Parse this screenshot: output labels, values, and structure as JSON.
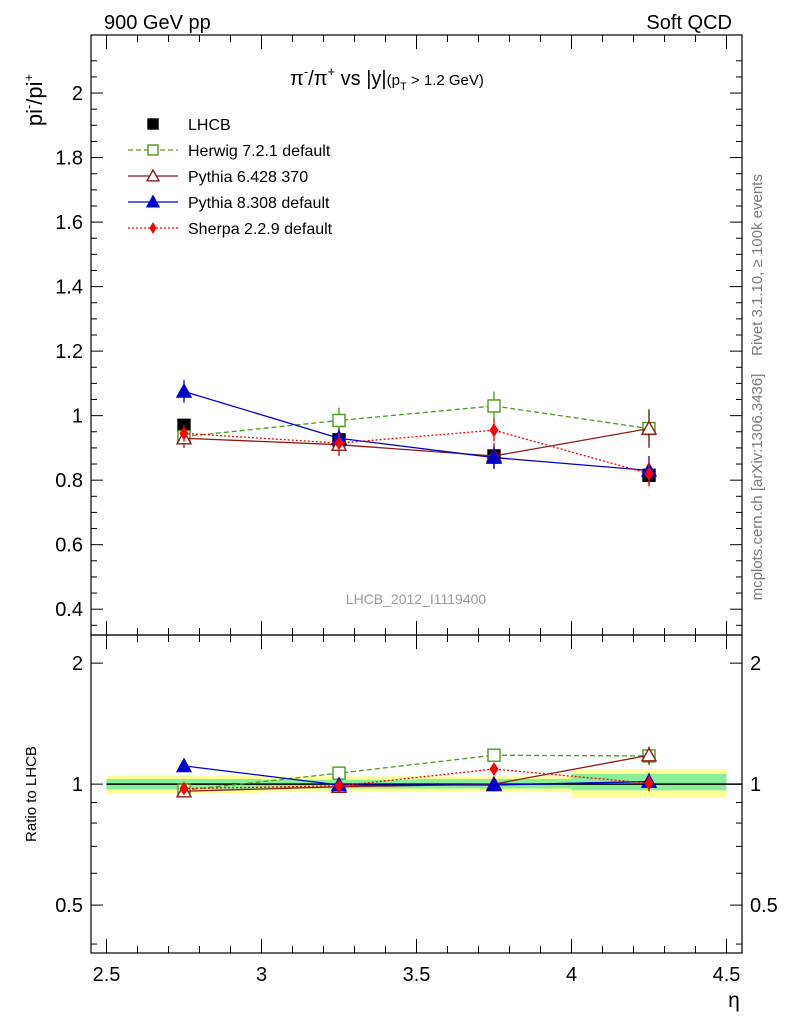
{
  "header": {
    "left": "900 GeV pp",
    "right": "Soft QCD"
  },
  "side": {
    "rivet": "Rivet 3.1.10, ≥ 100k events",
    "mcplots": "mcplots.cern.ch [arXiv:1306.3436]"
  },
  "chart_data": [
    {
      "type": "scatter",
      "panel": "main",
      "title_parts": {
        "pi": "π",
        "minus": "-",
        "slash": "/",
        "plus": "+",
        "vs": " vs |y|",
        "paren_open": "(p",
        "sub_T": "T",
        "cut": " > 1.2 GeV)"
      },
      "ylabel_parts": {
        "base1": "pi",
        "sup1": "-",
        "mid": "/pi",
        "sup2": "+"
      },
      "watermark": "LHCB_2012_I1119400",
      "xlim": [
        2.45,
        4.55
      ],
      "ylim": [
        0.32,
        2.18
      ],
      "yticks": [
        {
          "v": 0.4,
          "label": "0.4"
        },
        {
          "v": 0.6,
          "label": "0.6"
        },
        {
          "v": 0.8,
          "label": "0.8"
        },
        {
          "v": 1.0,
          "label": "1"
        },
        {
          "v": 1.2,
          "label": "1.2"
        },
        {
          "v": 1.4,
          "label": "1.4"
        },
        {
          "v": 1.6,
          "label": "1.6"
        },
        {
          "v": 1.8,
          "label": "1.8"
        },
        {
          "v": 2.0,
          "label": "2"
        }
      ],
      "legend_position": "top-left",
      "x": [
        2.75,
        3.25,
        3.75,
        4.25
      ],
      "series": [
        {
          "name": "LHCB",
          "color": "#000000",
          "marker": "filled-square",
          "line": "none",
          "values": [
            0.97,
            0.925,
            0.875,
            0.815
          ],
          "errors": [
            0.0,
            0.0,
            0.0,
            0.0
          ]
        },
        {
          "name": "Herwig 7.2.1 default",
          "color": "#4b9b1e",
          "marker": "open-square",
          "line": "dashed",
          "values": [
            0.935,
            0.985,
            1.03,
            0.96
          ],
          "errors": [
            0.02,
            0.04,
            0.045,
            0.055
          ]
        },
        {
          "name": "Pythia 6.428 370",
          "color": "#8b1a1a",
          "marker": "open-triangle",
          "line": "solid",
          "values": [
            0.93,
            0.91,
            0.875,
            0.96
          ],
          "errors": [
            0.03,
            0.035,
            0.04,
            0.06
          ]
        },
        {
          "name": "Pythia 8.308 default",
          "color": "#0000cc",
          "marker": "filled-triangle",
          "line": "solid",
          "values": [
            1.075,
            0.93,
            0.87,
            0.83
          ],
          "errors": [
            0.035,
            0.03,
            0.035,
            0.045
          ]
        },
        {
          "name": "Sherpa 2.2.9 default",
          "color": "#ff0000",
          "marker": "filled-diamond",
          "line": "dotted",
          "values": [
            0.945,
            0.915,
            0.955,
            0.82
          ],
          "errors": [
            0.025,
            0.03,
            0.035,
            0.04
          ]
        }
      ]
    },
    {
      "type": "scatter",
      "panel": "ratio",
      "ylabel": "Ratio to LHCB",
      "xlabel": "η",
      "scale": "log",
      "xlim": [
        2.45,
        4.55
      ],
      "ylim": [
        0.38,
        2.35
      ],
      "xticks": [
        {
          "v": 2.5,
          "label": "2.5"
        },
        {
          "v": 3.0,
          "label": "3"
        },
        {
          "v": 3.5,
          "label": "3.5"
        },
        {
          "v": 4.0,
          "label": "4"
        },
        {
          "v": 4.5,
          "label": "4.5"
        }
      ],
      "yticks": [
        {
          "v": 0.5,
          "label": "0.5"
        },
        {
          "v": 1.0,
          "label": "1"
        },
        {
          "v": 2.0,
          "label": "2"
        }
      ],
      "bands": [
        {
          "x0": 2.5,
          "x1": 3.0,
          "inner": [
            0.97,
            1.03
          ],
          "outer": [
            0.95,
            1.05
          ]
        },
        {
          "x0": 3.0,
          "x1": 3.5,
          "inner": [
            0.975,
            1.025
          ],
          "outer": [
            0.955,
            1.045
          ]
        },
        {
          "x0": 3.5,
          "x1": 4.0,
          "inner": [
            0.975,
            1.03
          ],
          "outer": [
            0.955,
            1.045
          ]
        },
        {
          "x0": 4.0,
          "x1": 4.5,
          "inner": [
            0.965,
            1.06
          ],
          "outer": [
            0.925,
            1.09
          ]
        }
      ],
      "x": [
        2.75,
        3.25,
        3.75,
        4.25
      ],
      "series": [
        {
          "name": "Herwig 7.2.1 default",
          "values": [
            0.965,
            1.065,
            1.18,
            1.175
          ],
          "errors": [
            0.02,
            0.04,
            0.04,
            0.06
          ]
        },
        {
          "name": "Pythia 6.428 370",
          "values": [
            0.96,
            0.985,
            1.0,
            1.18
          ],
          "errors": [
            0.025,
            0.035,
            0.04,
            0.06
          ]
        },
        {
          "name": "Pythia 8.308 default",
          "values": [
            1.11,
            0.995,
            0.995,
            1.015
          ],
          "errors": [
            0.035,
            0.03,
            0.035,
            0.05
          ]
        },
        {
          "name": "Sherpa 2.2.9 default",
          "values": [
            0.975,
            0.99,
            1.09,
            1.005
          ],
          "errors": [
            0.025,
            0.03,
            0.035,
            0.045
          ]
        }
      ]
    }
  ]
}
